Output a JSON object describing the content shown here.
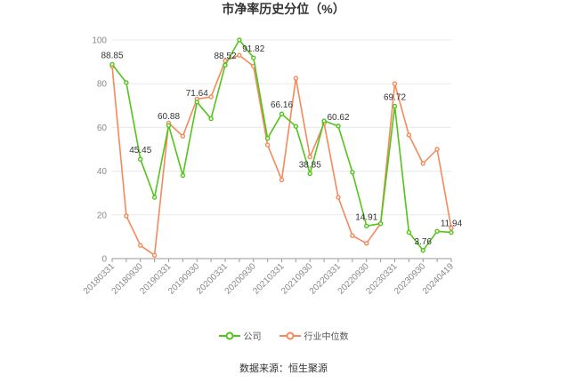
{
  "chart_data": {
    "type": "line",
    "title": "市净率历史分位（%）",
    "xlabel": "",
    "ylabel": "",
    "ylim": [
      0,
      100
    ],
    "yticks": [
      0,
      20,
      40,
      60,
      80,
      100
    ],
    "x": [
      "20180331",
      "20180630",
      "20180930",
      "20181231",
      "20190331",
      "20190630",
      "20190930",
      "20191231",
      "20200331",
      "20200630",
      "20200930",
      "20201231",
      "20210331",
      "20210630",
      "20210930",
      "20211231",
      "20220331",
      "20220630",
      "20220930",
      "20221231",
      "20230331",
      "20230630",
      "20230930",
      "20231231",
      "20240419"
    ],
    "xtick_labels": [
      "20180331",
      "20180930",
      "20190331",
      "20190930",
      "20200331",
      "20200930",
      "20210331",
      "20210930",
      "20220331",
      "20220930",
      "20230331",
      "20230930",
      "20240419"
    ],
    "grid": true,
    "legend_position": "bottom",
    "series": [
      {
        "name": "公司",
        "color": "#52c41a",
        "values": [
          88.85,
          80.5,
          45.45,
          28,
          60.88,
          38,
          71.64,
          64,
          88.52,
          100,
          91.82,
          55,
          66.16,
          60.5,
          38.85,
          63,
          60.62,
          39.5,
          14.91,
          16,
          69.72,
          12,
          3.76,
          12.5,
          11.94
        ],
        "labels": {
          "0": "88.85",
          "2": "45.45",
          "4": "60.88",
          "6": "71.64",
          "8": "88.52",
          "10": "91.82",
          "12": "66.16",
          "14": "38.85",
          "16": "60.62",
          "18": "14.91",
          "20": "69.72",
          "22": "3.76",
          "24": "11.94"
        }
      },
      {
        "name": "行业中位数",
        "color": "#f5895b",
        "values": [
          88,
          19.5,
          6,
          1.5,
          62,
          56,
          73,
          74,
          90.5,
          93,
          88,
          52,
          36,
          82.5,
          46.5,
          62,
          28,
          10.5,
          7,
          16,
          80,
          56.5,
          43.5,
          50,
          14
        ]
      }
    ]
  },
  "source": "数据来源：恒生聚源"
}
